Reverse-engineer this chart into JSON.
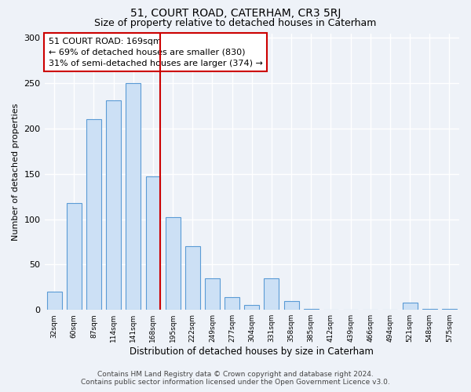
{
  "title": "51, COURT ROAD, CATERHAM, CR3 5RJ",
  "subtitle": "Size of property relative to detached houses in Caterham",
  "xlabel": "Distribution of detached houses by size in Caterham",
  "ylabel": "Number of detached properties",
  "bar_labels": [
    "32sqm",
    "60sqm",
    "87sqm",
    "114sqm",
    "141sqm",
    "168sqm",
    "195sqm",
    "222sqm",
    "249sqm",
    "277sqm",
    "304sqm",
    "331sqm",
    "358sqm",
    "385sqm",
    "412sqm",
    "439sqm",
    "466sqm",
    "494sqm",
    "521sqm",
    "548sqm",
    "575sqm"
  ],
  "bar_values": [
    20,
    118,
    210,
    231,
    250,
    147,
    102,
    70,
    35,
    14,
    5,
    35,
    10,
    1,
    0,
    0,
    0,
    0,
    8,
    1,
    1
  ],
  "bar_color": "#cce0f5",
  "bar_edge_color": "#5b9bd5",
  "ylim": [
    0,
    305
  ],
  "yticks": [
    0,
    50,
    100,
    150,
    200,
    250,
    300
  ],
  "marker_label": "51 COURT ROAD: 169sqm",
  "annotation_line1": "← 69% of detached houses are smaller (830)",
  "annotation_line2": "31% of semi-detached houses are larger (374) →",
  "vline_color": "#cc0000",
  "annotation_box_edge_color": "#cc0000",
  "footer_line1": "Contains HM Land Registry data © Crown copyright and database right 2024.",
  "footer_line2": "Contains public sector information licensed under the Open Government Licence v3.0.",
  "background_color": "#eef2f8",
  "plot_bg_color": "#eef2f8",
  "grid_color": "#ffffff",
  "title_fontsize": 10,
  "subtitle_fontsize": 9,
  "footer_fontsize": 6.5,
  "bar_width": 0.75
}
